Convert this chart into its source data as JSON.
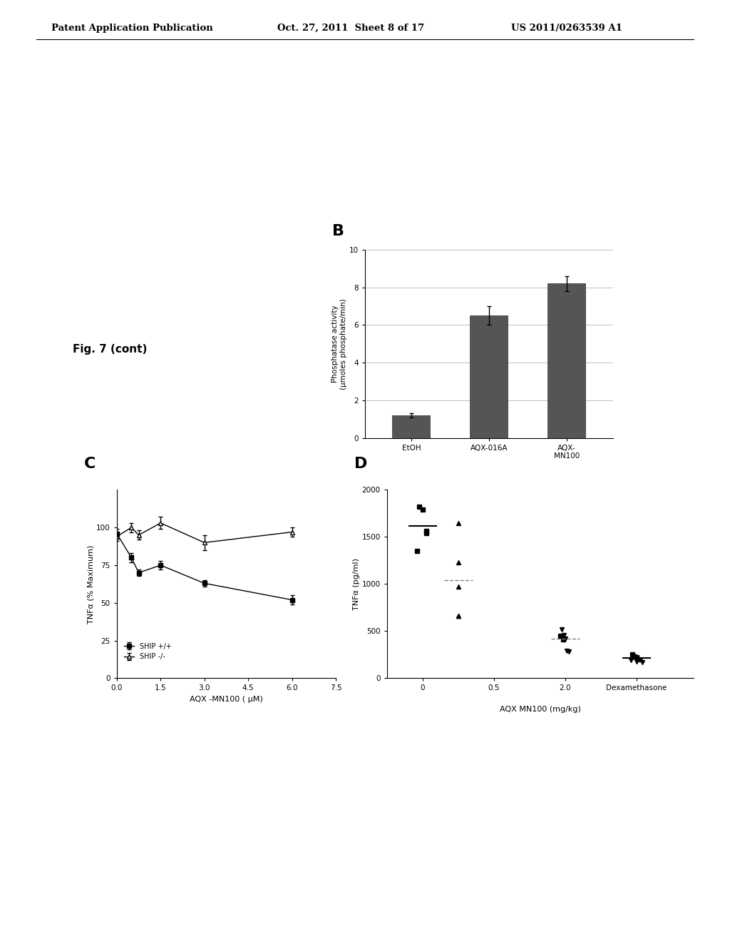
{
  "header_left": "Patent Application Publication",
  "header_center": "Oct. 27, 2011  Sheet 8 of 17",
  "header_right": "US 2011/0263539 A1",
  "fig_label": "Fig. 7 (cont)",
  "panel_B": {
    "label": "B",
    "categories": [
      "EtOH",
      "AQX-016A",
      "AQX-\nMN100"
    ],
    "values": [
      1.2,
      6.5,
      8.2
    ],
    "errors": [
      0.1,
      0.5,
      0.4
    ],
    "ylabel": "Phosphatase activity\n(μmoles phosphate/min)",
    "ylim": [
      0,
      10
    ],
    "yticks": [
      0,
      2,
      4,
      6,
      8,
      10
    ],
    "bar_color": "#555555",
    "bar_width": 0.5
  },
  "panel_C": {
    "label": "C",
    "xlabel": "AQX -MN100 ( μM)",
    "ylabel": "TNFα (% Maximum)",
    "xlim": [
      0.0,
      7.5
    ],
    "ylim": [
      0,
      125
    ],
    "xticks": [
      0.0,
      1.5,
      3.0,
      4.5,
      6.0,
      7.5
    ],
    "yticks": [
      0,
      25,
      50,
      75,
      100
    ],
    "ship_pp_x": [
      0.0,
      0.5,
      0.75,
      1.5,
      3.0,
      6.0
    ],
    "ship_pp_y": [
      96,
      80,
      70,
      75,
      63,
      52
    ],
    "ship_pp_err": [
      3,
      3,
      2,
      3,
      2,
      3
    ],
    "ship_km_x": [
      0.0,
      0.5,
      0.75,
      1.5,
      3.0,
      6.0
    ],
    "ship_km_y": [
      94,
      100,
      95,
      103,
      90,
      97
    ],
    "ship_km_err": [
      3,
      3,
      3,
      4,
      5,
      3
    ],
    "legend_pp": "SHIP +/+",
    "legend_km": "SHIP -/-"
  },
  "panel_D": {
    "label": "D",
    "xlabel": "AQX MN100 (mg/kg)",
    "ylabel": "TNFα (pg/ml)",
    "xtick_labels": [
      "0",
      "0.5",
      "2.0",
      "Dexamethasone"
    ],
    "xtick_pos": [
      0,
      1,
      2,
      3
    ],
    "ylim": [
      0,
      2000
    ],
    "yticks": [
      0,
      500,
      1000,
      1500,
      2000
    ],
    "group0_squares": [
      1820,
      1790,
      1560,
      1540,
      1350
    ],
    "group0_triangles": [],
    "group0_mean": 1620,
    "group1_squares": [],
    "group1_up_triangles": [
      1650,
      1230,
      970,
      660,
      660
    ],
    "group1_mean": 1040,
    "group2_down_triangles": [
      520,
      460,
      420,
      290,
      280
    ],
    "group2_squares": [
      450,
      410
    ],
    "group2_mean": 420,
    "group3_all": [
      250,
      230,
      220,
      210,
      200,
      190,
      180,
      170
    ],
    "group3_mean": 215
  },
  "background_color": "#ffffff",
  "text_color": "#000000"
}
